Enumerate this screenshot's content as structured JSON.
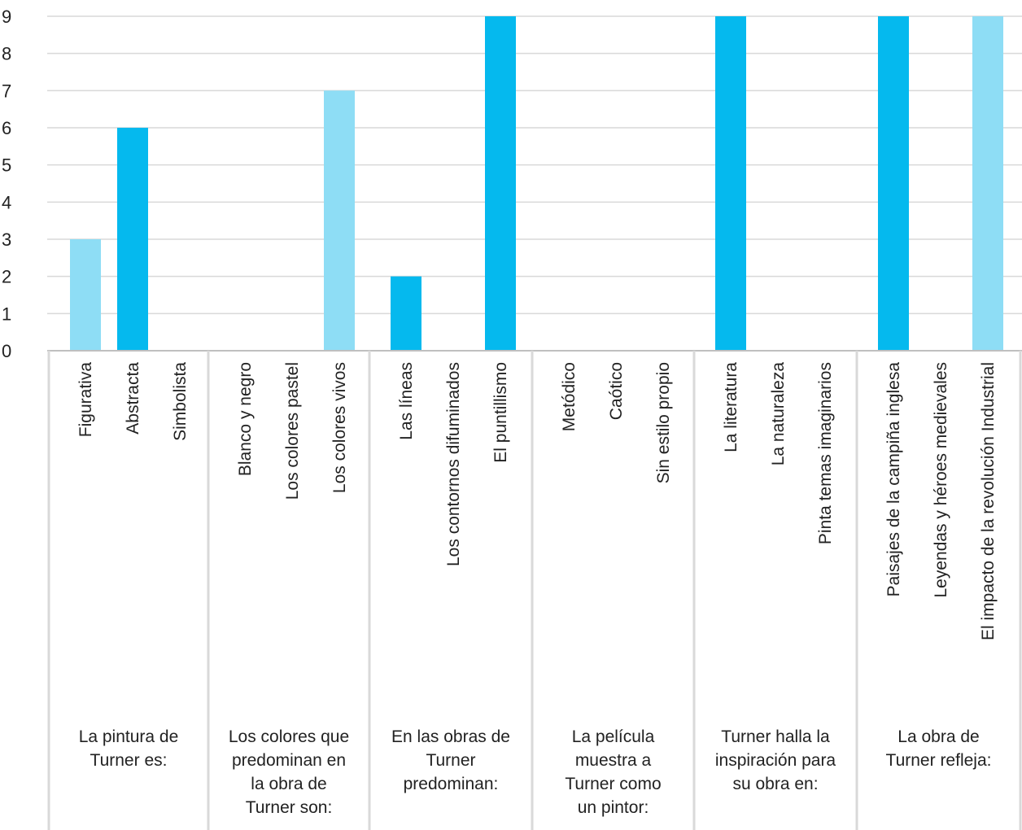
{
  "chart_data": {
    "type": "bar",
    "ylim": [
      0,
      9
    ],
    "yticks": [
      0,
      1,
      2,
      3,
      4,
      5,
      6,
      7,
      8,
      9
    ],
    "grid": true,
    "colors": {
      "light": "#8EDDF5",
      "dark": "#05B9EE",
      "grid": "#D9D9D9",
      "axis": "#BFBFBF"
    },
    "groups": [
      {
        "label_lines": [
          "La pintura de",
          "Turner es:"
        ],
        "items": [
          {
            "label": "Figurativa",
            "value": 3,
            "shade": "light"
          },
          {
            "label": "Abstracta",
            "value": 6,
            "shade": "dark"
          },
          {
            "label": "Simbolista",
            "value": 0,
            "shade": "light"
          }
        ]
      },
      {
        "label_lines": [
          "Los colores que",
          "predominan en",
          "la obra de",
          "Turner son:"
        ],
        "items": [
          {
            "label": "Blanco y negro",
            "value": 0,
            "shade": "dark"
          },
          {
            "label": "Los colores pastel",
            "value": 0,
            "shade": "dark"
          },
          {
            "label": "Los colores vivos",
            "value": 7,
            "shade": "light"
          }
        ]
      },
      {
        "label_lines": [
          "En las obras de",
          "Turner",
          "predominan:"
        ],
        "items": [
          {
            "label": "Las líneas",
            "value": 2,
            "shade": "dark"
          },
          {
            "label": "Los contornos difuminados",
            "value": 0,
            "shade": "light"
          },
          {
            "label": "El puntillismo",
            "value": 9,
            "shade": "dark"
          }
        ]
      },
      {
        "label_lines": [
          "La película",
          "muestra a",
          "Turner como",
          "un pintor:"
        ],
        "items": [
          {
            "label": "Metódico",
            "value": 0,
            "shade": "light"
          },
          {
            "label": "Caótico",
            "value": 0,
            "shade": "dark"
          },
          {
            "label": "Sin estilo propio",
            "value": 0,
            "shade": "light"
          }
        ]
      },
      {
        "label_lines": [
          "Turner halla la",
          "inspiración para",
          "su obra en:"
        ],
        "items": [
          {
            "label": "La literatura",
            "value": 9,
            "shade": "dark"
          },
          {
            "label": "La naturaleza",
            "value": 0,
            "shade": "light"
          },
          {
            "label": "Pinta temas imaginarios",
            "value": 0,
            "shade": "dark"
          }
        ]
      },
      {
        "label_lines": [
          "La obra de",
          "Turner refleja:"
        ],
        "items": [
          {
            "label": "Paisajes de la campiña inglesa",
            "value": 9,
            "shade": "dark"
          },
          {
            "label": "Leyendas y héroes medievales",
            "value": 0,
            "shade": "light"
          },
          {
            "label": "El impacto de la revolución Industrial",
            "value": 9,
            "shade": "light"
          }
        ]
      }
    ]
  }
}
